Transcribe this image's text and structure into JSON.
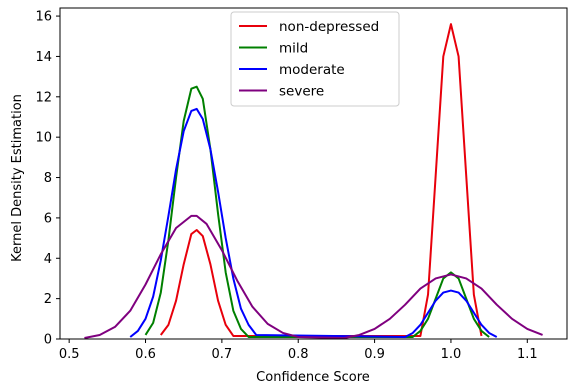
{
  "chart_data": {
    "type": "line",
    "title": "",
    "xlabel": "Confidence Score",
    "ylabel": "Kernel Density Estimation",
    "xlim": [
      0.488,
      1.152
    ],
    "ylim": [
      0,
      16.4
    ],
    "xticks": [
      0.5,
      0.6,
      0.7,
      0.8,
      0.9,
      1.0,
      1.1
    ],
    "xtick_labels": [
      "0.5",
      "0.6",
      "0.7",
      "0.8",
      "0.9",
      "1.0",
      "1.1"
    ],
    "yticks": [
      0,
      2,
      4,
      6,
      8,
      10,
      12,
      14,
      16
    ],
    "ytick_labels": [
      "0",
      "2",
      "4",
      "6",
      "8",
      "10",
      "12",
      "14",
      "16"
    ],
    "grid": false,
    "legend_position": "upper-center",
    "series": [
      {
        "name": "non-depressed",
        "color": "#e8000b",
        "x": [
          0.62,
          0.63,
          0.64,
          0.65,
          0.66,
          0.667,
          0.675,
          0.685,
          0.695,
          0.705,
          0.715,
          0.96,
          0.97,
          0.98,
          0.99,
          1.0,
          1.01,
          1.02,
          1.03,
          1.04
        ],
        "y": [
          0.2,
          0.7,
          1.9,
          3.7,
          5.2,
          5.4,
          5.1,
          3.7,
          1.9,
          0.7,
          0.15,
          0.15,
          2.2,
          8.1,
          14.0,
          15.6,
          14.0,
          8.1,
          2.2,
          0.15
        ]
      },
      {
        "name": "mild",
        "color": "#008000",
        "x": [
          0.6,
          0.61,
          0.62,
          0.63,
          0.64,
          0.65,
          0.66,
          0.667,
          0.675,
          0.685,
          0.695,
          0.705,
          0.715,
          0.725,
          0.735,
          0.95,
          0.96,
          0.97,
          0.98,
          0.99,
          1.0,
          1.01,
          1.02,
          1.03,
          1.04,
          1.05
        ],
        "y": [
          0.2,
          0.8,
          2.3,
          4.9,
          8.0,
          10.8,
          12.4,
          12.5,
          11.9,
          9.4,
          6.2,
          3.3,
          1.4,
          0.5,
          0.1,
          0.1,
          0.4,
          1.0,
          2.0,
          3.0,
          3.3,
          3.0,
          2.0,
          1.0,
          0.4,
          0.1
        ]
      },
      {
        "name": "moderate",
        "color": "#0000ff",
        "x": [
          0.58,
          0.59,
          0.6,
          0.61,
          0.62,
          0.63,
          0.64,
          0.65,
          0.66,
          0.667,
          0.675,
          0.685,
          0.695,
          0.705,
          0.715,
          0.725,
          0.735,
          0.745,
          0.94,
          0.95,
          0.96,
          0.97,
          0.98,
          0.99,
          1.0,
          1.01,
          1.02,
          1.03,
          1.04,
          1.05,
          1.06
        ],
        "y": [
          0.1,
          0.4,
          1.0,
          2.1,
          3.9,
          6.1,
          8.4,
          10.3,
          11.3,
          11.4,
          10.9,
          9.4,
          7.3,
          5.0,
          3.0,
          1.5,
          0.7,
          0.2,
          0.1,
          0.3,
          0.7,
          1.3,
          1.9,
          2.3,
          2.4,
          2.3,
          1.9,
          1.3,
          0.7,
          0.3,
          0.1
        ]
      },
      {
        "name": "severe",
        "color": "#7f007f",
        "x": [
          0.52,
          0.54,
          0.56,
          0.58,
          0.6,
          0.62,
          0.64,
          0.66,
          0.667,
          0.68,
          0.7,
          0.72,
          0.74,
          0.76,
          0.78,
          0.8,
          0.86,
          0.88,
          0.9,
          0.92,
          0.94,
          0.96,
          0.98,
          1.0,
          1.02,
          1.04,
          1.06,
          1.08,
          1.1,
          1.12
        ],
        "y": [
          0.05,
          0.2,
          0.6,
          1.4,
          2.7,
          4.2,
          5.5,
          6.1,
          6.1,
          5.7,
          4.4,
          2.9,
          1.6,
          0.75,
          0.3,
          0.1,
          0.05,
          0.2,
          0.5,
          1.0,
          1.7,
          2.5,
          3.0,
          3.2,
          3.0,
          2.5,
          1.7,
          1.0,
          0.5,
          0.2
        ]
      }
    ]
  }
}
